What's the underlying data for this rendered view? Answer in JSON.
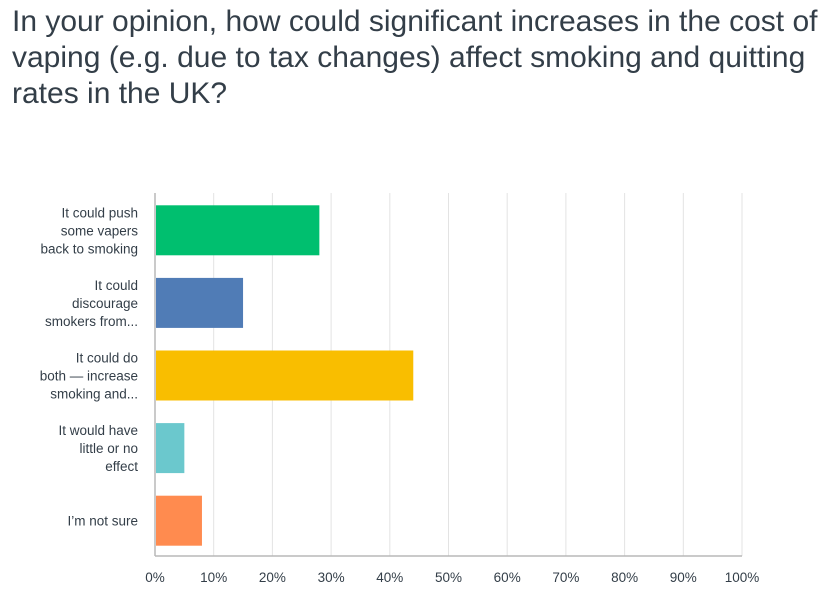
{
  "chart_data": {
    "type": "bar",
    "orientation": "horizontal",
    "title": "In your opinion, how could significant increases in the cost of vaping (e.g. due to tax changes) affect smoking and quitting rates in the UK?",
    "categories": [
      [
        "It could push",
        "some vapers",
        "back to smoking"
      ],
      [
        "It could",
        "discourage",
        "smokers from..."
      ],
      [
        "It could do",
        "both — increase",
        "smoking and..."
      ],
      [
        "It would have",
        "little or no",
        "effect"
      ],
      [
        "I’m not sure"
      ]
    ],
    "values": [
      28,
      15,
      44,
      5,
      8
    ],
    "colors": [
      "#00bf6f",
      "#507cb6",
      "#f9be00",
      "#6bc8cd",
      "#ff8b4f"
    ],
    "xlim": [
      0,
      100
    ],
    "xticks": [
      "0%",
      "10%",
      "20%",
      "30%",
      "40%",
      "50%",
      "60%",
      "70%",
      "80%",
      "90%",
      "100%"
    ],
    "grid": true,
    "legend": "none"
  }
}
